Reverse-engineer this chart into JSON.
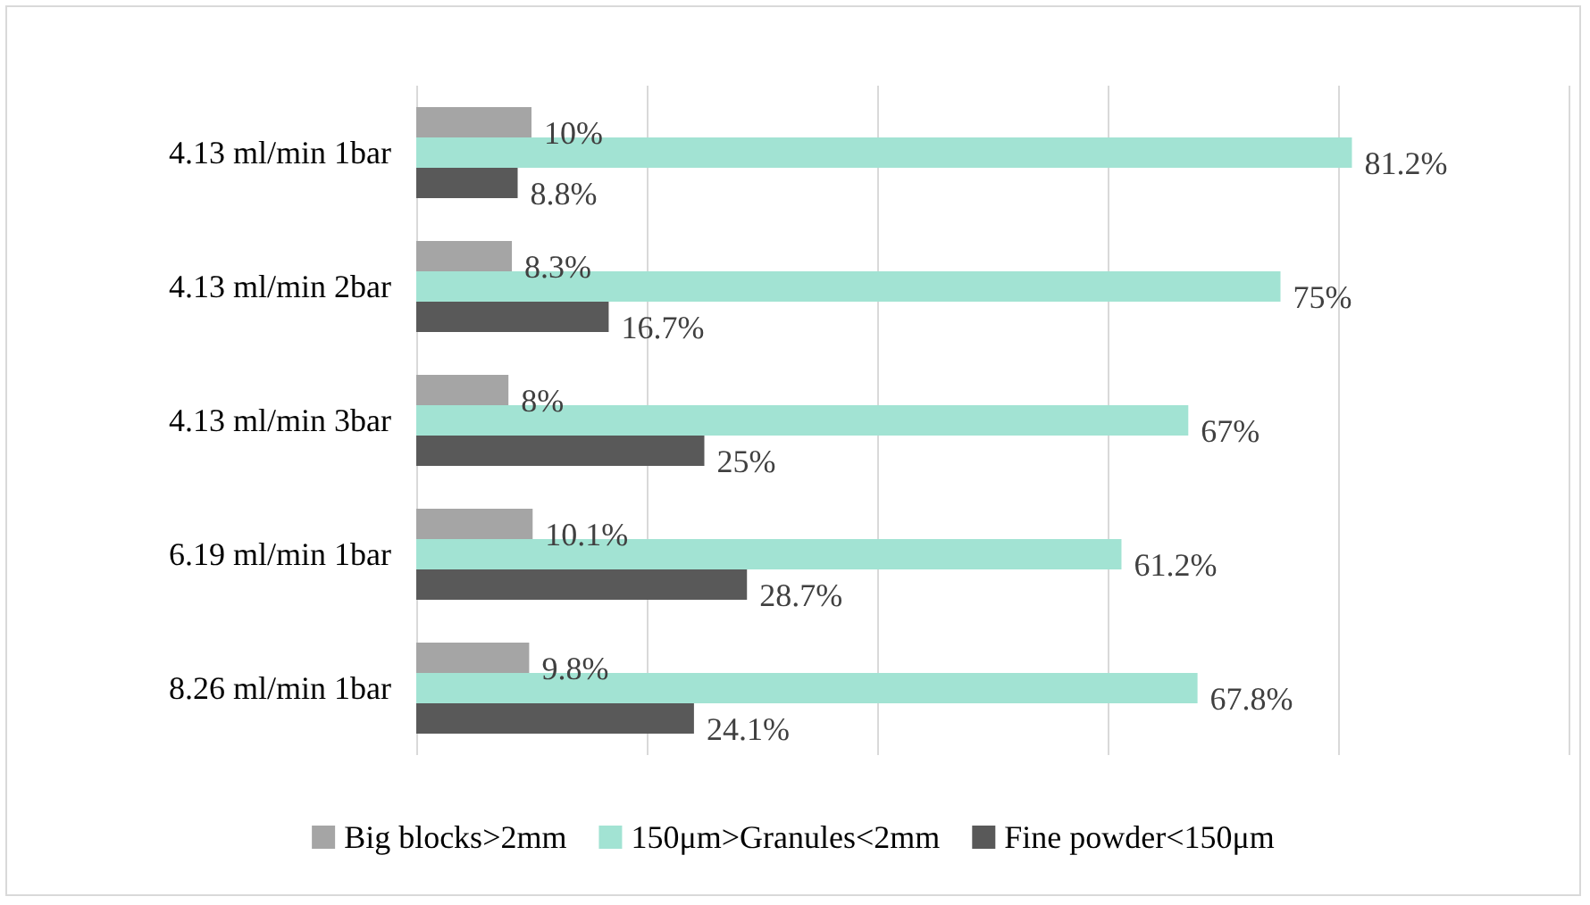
{
  "chart_data": {
    "type": "bar",
    "orientation": "horizontal",
    "categories": [
      "4.13 ml/min 1bar",
      "4.13 ml/min 2bar",
      "4.13 ml/min 3bar",
      "6.19 ml/min 1bar",
      "8.26 ml/min 1bar"
    ],
    "series": [
      {
        "name": "Big blocks>2mm",
        "color": "#a5a5a5",
        "values": [
          10,
          8.3,
          8,
          10.1,
          9.8
        ],
        "value_labels": [
          "10%",
          "8.3%",
          "8%",
          "10.1%",
          "9.8%"
        ]
      },
      {
        "name": "150μm>Granules<2mm",
        "color": "#a2e3d3",
        "values": [
          81.2,
          75,
          67,
          61.2,
          67.8
        ],
        "value_labels": [
          "81.2%",
          "75%",
          "67%",
          "61.2%",
          "67.8%"
        ]
      },
      {
        "name": "Fine powder<150μm",
        "color": "#595959",
        "values": [
          8.8,
          16.7,
          25,
          28.7,
          24.1
        ],
        "value_labels": [
          "8.8%",
          "16.7%",
          "25%",
          "28.7%",
          "24.1%"
        ]
      }
    ],
    "xlim": [
      0,
      100
    ],
    "xticks": [
      {
        "value": 0,
        "label": null
      },
      {
        "value": 20,
        "label": null
      },
      {
        "value": 40,
        "label": null
      },
      {
        "value": 60,
        "label": null
      },
      {
        "value": 80,
        "label": null
      },
      {
        "value": 100,
        "label": null
      }
    ],
    "tick_labels": "y",
    "grid": "x",
    "legend": "bottom"
  }
}
